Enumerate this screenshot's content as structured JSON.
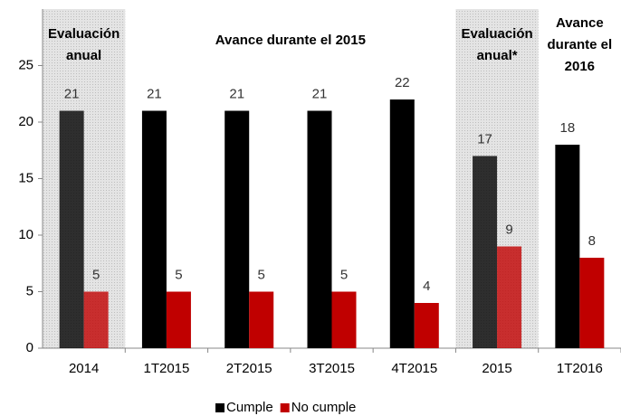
{
  "chart_data": {
    "type": "bar",
    "categories": [
      "2014",
      "1T2015",
      "2T2015",
      "3T2015",
      "4T2015",
      "2015",
      "1T2016"
    ],
    "series": [
      {
        "name": "Cumple",
        "color": "#000000",
        "values": [
          21,
          21,
          21,
          21,
          22,
          17,
          18
        ]
      },
      {
        "name": "No cumple",
        "color": "#c00000",
        "values": [
          5,
          5,
          5,
          5,
          4,
          9,
          8
        ]
      }
    ],
    "ylim": [
      0,
      30
    ],
    "yticks": [
      0,
      5,
      10,
      15,
      20,
      25
    ],
    "highlighted_categories": [
      "2014",
      "2015"
    ],
    "annotations": [
      {
        "lines": [
          "Evaluación",
          "anual"
        ]
      },
      {
        "lines": [
          "Avance durante el  2015"
        ]
      },
      {
        "lines": [
          "Evaluación",
          "anual*"
        ]
      },
      {
        "lines": [
          "Avance",
          "durante el",
          "2016"
        ]
      }
    ],
    "legend": "bottom"
  }
}
